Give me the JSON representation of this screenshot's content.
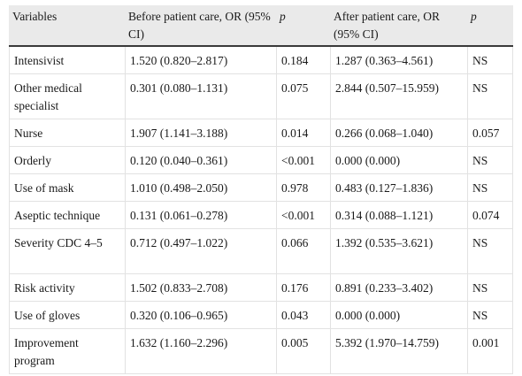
{
  "table": {
    "headers": {
      "variables": "Variables",
      "before_or": "Before patient care, OR (95% CI)",
      "before_p": "p",
      "after_or": "After patient care, OR (95% CI)",
      "after_p": "p"
    },
    "rows": [
      {
        "variable": "Intensivist",
        "before_or": "1.520 (0.820–2.817)",
        "before_p": "0.184",
        "after_or": "1.287 (0.363–4.561)",
        "after_p": "NS"
      },
      {
        "variable": "Other medical specialist",
        "before_or": "0.301 (0.080–1.131)",
        "before_p": "0.075",
        "after_or": "2.844 (0.507–15.959)",
        "after_p": "NS"
      },
      {
        "variable": "Nurse",
        "before_or": "1.907 (1.141–3.188)",
        "before_p": "0.014",
        "after_or": "0.266 (0.068–1.040)",
        "after_p": "0.057"
      },
      {
        "variable": "Orderly",
        "before_or": "0.120 (0.040–0.361)",
        "before_p": "<0.001",
        "after_or": "0.000 (0.000)",
        "after_p": "NS"
      },
      {
        "variable": "Use of mask",
        "before_or": "1.010 (0.498–2.050)",
        "before_p": "0.978",
        "after_or": "0.483 (0.127–1.836)",
        "after_p": "NS"
      },
      {
        "variable": "Aseptic technique",
        "before_or": "0.131 (0.061–0.278)",
        "before_p": "<0.001",
        "after_or": "0.314 (0.088–1.121)",
        "after_p": "0.074"
      },
      {
        "variable": "Severity CDC 4–5",
        "before_or": "0.712 (0.497–1.022)",
        "before_p": "0.066",
        "after_or": "1.392 (0.535–3.621)",
        "after_p": "NS"
      },
      {
        "variable": "Risk activity",
        "before_or": "1.502 (0.833–2.708)",
        "before_p": "0.176",
        "after_or": "0.891 (0.233–3.402)",
        "after_p": "NS"
      },
      {
        "variable": "Use of gloves",
        "before_or": "0.320 (0.106–0.965)",
        "before_p": "0.043",
        "after_or": "0.000 (0.000)",
        "after_p": "NS"
      },
      {
        "variable": "Improvement program",
        "before_or": "1.632 (1.160–2.296)",
        "before_p": "0.005",
        "after_or": "5.392 (1.970–14.759)",
        "after_p": "0.001"
      }
    ]
  }
}
